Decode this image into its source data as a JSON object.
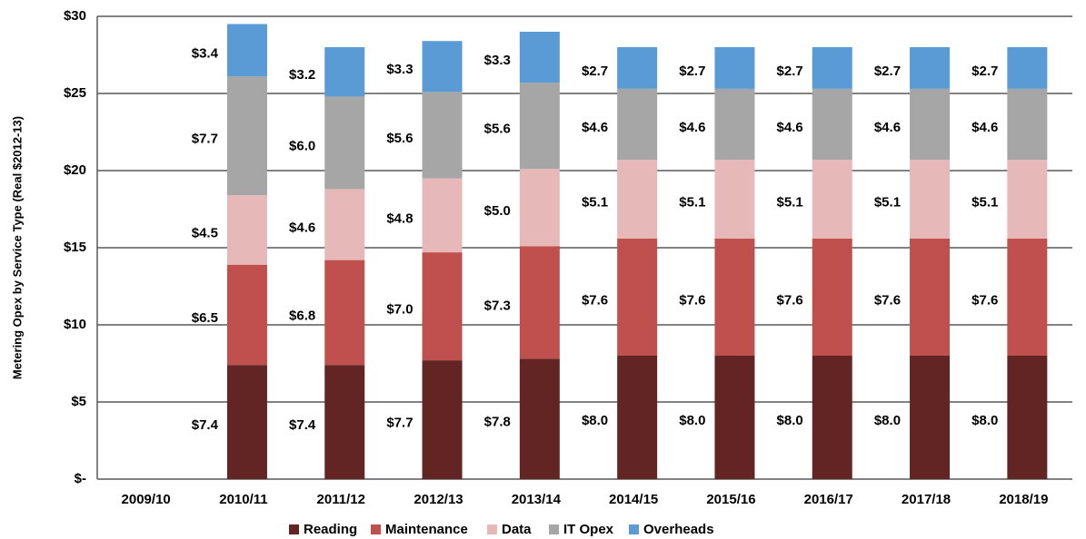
{
  "chart_data": {
    "type": "stacked_bar",
    "y_label": "Metering Opex by Service Type (Real $2012-13)",
    "categories": [
      "2009/10",
      "2010/11",
      "2011/12",
      "2012/13",
      "2013/14",
      "2014/15",
      "2015/16",
      "2016/17",
      "2017/18",
      "2018/19"
    ],
    "series": [
      {
        "name": "Reading",
        "color": "#632523",
        "values": [
          null,
          7.4,
          7.4,
          7.7,
          7.8,
          8.0,
          8.0,
          8.0,
          8.0,
          8.0
        ],
        "value_labels": [
          null,
          "$7.4",
          "$7.4",
          "$7.7",
          "$7.8",
          "$8.0",
          "$8.0",
          "$8.0",
          "$8.0",
          "$8.0"
        ]
      },
      {
        "name": "Maintenance",
        "color": "#c0504d",
        "values": [
          null,
          6.5,
          6.8,
          7.0,
          7.3,
          7.6,
          7.6,
          7.6,
          7.6,
          7.6
        ],
        "value_labels": [
          null,
          "$6.5",
          "$6.8",
          "$7.0",
          "$7.3",
          "$7.6",
          "$7.6",
          "$7.6",
          "$7.6",
          "$7.6"
        ]
      },
      {
        "name": "Data",
        "color": "#e6b9b8",
        "values": [
          null,
          4.5,
          4.6,
          4.8,
          5.0,
          5.1,
          5.1,
          5.1,
          5.1,
          5.1
        ],
        "value_labels": [
          null,
          "$4.5",
          "$4.6",
          "$4.8",
          "$5.0",
          "$5.1",
          "$5.1",
          "$5.1",
          "$5.1",
          "$5.1"
        ]
      },
      {
        "name": "IT Opex",
        "color": "#a6a6a6",
        "values": [
          null,
          7.7,
          6.0,
          5.6,
          5.6,
          4.6,
          4.6,
          4.6,
          4.6,
          4.6
        ],
        "value_labels": [
          null,
          "$7.7",
          "$6.0",
          "$5.6",
          "$5.6",
          "$4.6",
          "$4.6",
          "$4.6",
          "$4.6",
          "$4.6"
        ]
      },
      {
        "name": "Overheads",
        "color": "#5b9bd5",
        "values": [
          null,
          3.4,
          3.2,
          3.3,
          3.3,
          2.7,
          2.7,
          2.7,
          2.7,
          2.7
        ],
        "value_labels": [
          null,
          "$3.4",
          "$3.2",
          "$3.3",
          "$3.3",
          "$2.7",
          "$2.7",
          "$2.7",
          "$2.7",
          "$2.7"
        ]
      }
    ],
    "ylim": [
      0,
      30
    ],
    "yticks": [
      {
        "value": 0,
        "label": "$-"
      },
      {
        "value": 5,
        "label": "$5"
      },
      {
        "value": 10,
        "label": "$10"
      },
      {
        "value": 15,
        "label": "$15"
      },
      {
        "value": 20,
        "label": "$20"
      },
      {
        "value": 25,
        "label": "$25"
      },
      {
        "value": 30,
        "label": "$30"
      }
    ],
    "grid": true,
    "legend": "bottom"
  }
}
